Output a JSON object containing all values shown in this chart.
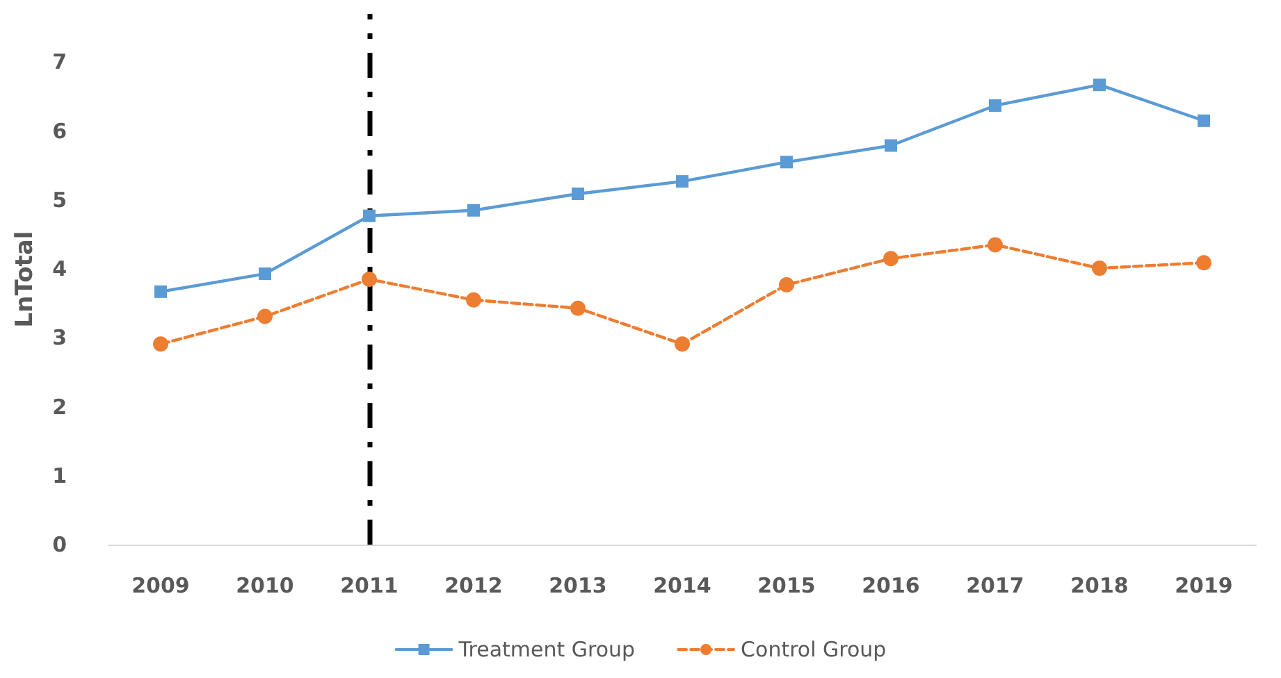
{
  "chart_data": {
    "type": "line",
    "ylabel": "LnTotal",
    "categories": [
      "2009",
      "2010",
      "2011",
      "2012",
      "2013",
      "2014",
      "2015",
      "2016",
      "2017",
      "2018",
      "2019"
    ],
    "series": [
      {
        "name": "Treatment Group",
        "color": "#5b9bd5",
        "marker": "square",
        "line_style": "solid",
        "values": [
          3.67,
          3.93,
          4.77,
          4.85,
          5.09,
          5.27,
          5.55,
          5.79,
          6.37,
          6.67,
          6.15
        ]
      },
      {
        "name": "Control Group",
        "color": "#ed7d31",
        "marker": "circle",
        "line_style": "dashed",
        "values": [
          2.91,
          3.31,
          3.85,
          3.55,
          3.43,
          2.91,
          3.77,
          4.15,
          4.35,
          4.01,
          4.09
        ]
      }
    ],
    "ylim": [
      0,
      7.7
    ],
    "yticks": [
      0,
      1,
      2,
      3,
      4,
      5,
      6,
      7
    ],
    "grid": false,
    "legend": "bottom",
    "ref_lines": [
      {
        "axis": "x",
        "value": "2011",
        "color": "#000000",
        "line_style": "dashed"
      }
    ]
  }
}
